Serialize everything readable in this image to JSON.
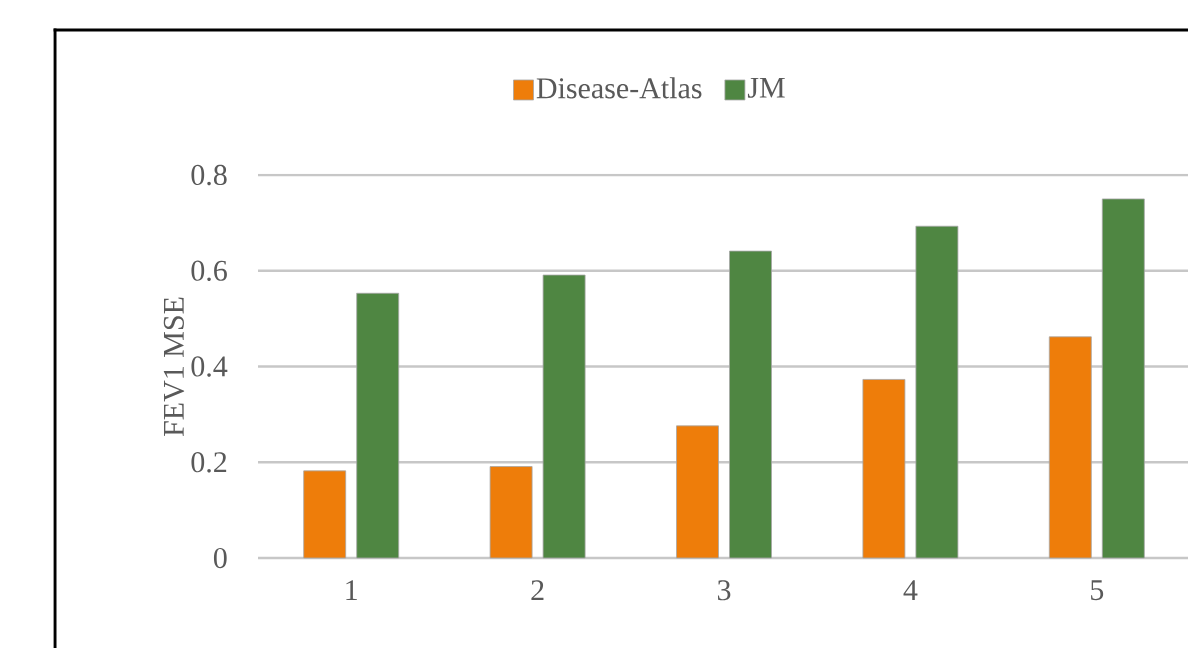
{
  "chart_data": {
    "type": "bar",
    "ylabel": "FEV1 MSE",
    "categories": [
      "1",
      "2",
      "3",
      "4",
      "5"
    ],
    "series": [
      {
        "name": "Disease-Atlas",
        "color": "#ee7d0a",
        "values": [
          0.182,
          0.191,
          0.276,
          0.373,
          0.462
        ]
      },
      {
        "name": "JM",
        "color": "#4f8642",
        "values": [
          0.553,
          0.591,
          0.641,
          0.693,
          0.75
        ]
      }
    ],
    "ylim": [
      0,
      0.8
    ],
    "yticks": [
      0,
      0.2,
      0.4,
      0.6,
      0.8
    ],
    "grid": "y",
    "legend": "top"
  }
}
